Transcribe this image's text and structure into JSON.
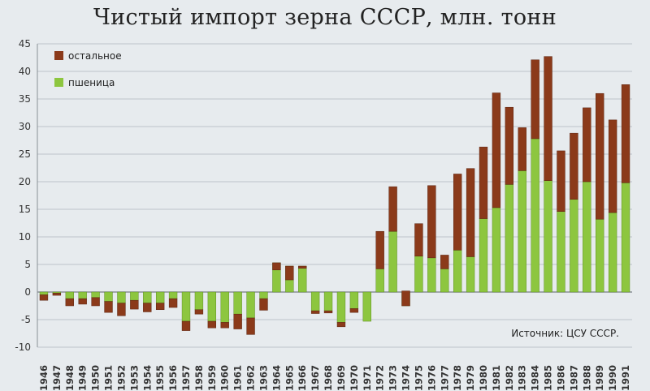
{
  "chart_data": {
    "type": "bar",
    "stacked": true,
    "title": "Чистый импорт зерна СССР, млн. тонн",
    "source_note": "Источник: ЦСУ СССР.",
    "ylim": [
      -10,
      45
    ],
    "yticks": [
      -10,
      -5,
      0,
      5,
      10,
      15,
      20,
      25,
      30,
      35,
      40,
      45
    ],
    "grid": true,
    "legend_position": "top-left",
    "categories": [
      "1946",
      "1947",
      "1948",
      "1949",
      "1950",
      "1951",
      "1952",
      "1953",
      "1954",
      "1955",
      "1956",
      "1957",
      "1958",
      "1959",
      "1960",
      "1961",
      "1962",
      "1963",
      "1964",
      "1965",
      "1966",
      "1967",
      "1968",
      "1969",
      "1970",
      "1971",
      "1972",
      "1973",
      "1974",
      "1975",
      "1976",
      "1977",
      "1978",
      "1979",
      "1980",
      "1981",
      "1982",
      "1983",
      "1984",
      "1985",
      "1986",
      "1987",
      "1988",
      "1989",
      "1990",
      "1991"
    ],
    "series": [
      {
        "name": "пшеница",
        "color": "#8dc63f",
        "values": [
          -0.5,
          -0.2,
          -1.2,
          -1.2,
          -1.0,
          -1.7,
          -2.0,
          -1.5,
          -2.0,
          -2.0,
          -1.2,
          -5.3,
          -3.2,
          -5.3,
          -5.5,
          -4.0,
          -4.7,
          -1.2,
          5.3,
          4.7,
          4.7,
          -3.4,
          -3.4,
          -5.5,
          -3.0,
          -5.3,
          4.2,
          11.0,
          -2.5,
          6.5,
          6.2,
          4.2,
          7.6,
          6.4,
          13.3,
          15.3,
          19.5,
          22.0,
          27.8,
          20.2,
          14.6,
          16.8,
          20.0,
          13.2,
          14.4,
          19.8
        ]
      },
      {
        "name": "остальное",
        "color": "#8b3a1a",
        "values": [
          -1.0,
          -0.4,
          -1.3,
          -1.0,
          -1.5,
          -2.0,
          -2.3,
          -1.6,
          -1.6,
          -1.2,
          -1.6,
          -1.7,
          -0.8,
          -1.2,
          -1.0,
          -2.7,
          -3.0,
          -2.1,
          -1.3,
          -2.5,
          -0.4,
          -0.5,
          -0.4,
          -0.8,
          -0.7,
          0.0,
          6.8,
          8.1,
          2.7,
          5.9,
          13.1,
          2.5,
          13.8,
          16.0,
          13.0,
          20.8,
          14.0,
          7.8,
          14.3,
          22.5,
          11.0,
          12.0,
          13.4,
          22.8,
          16.8,
          17.8
        ]
      }
    ]
  }
}
